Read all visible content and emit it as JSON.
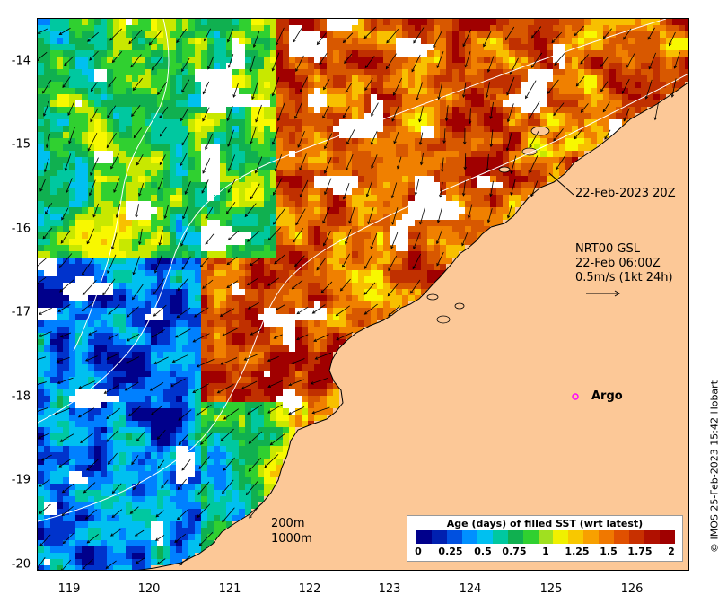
{
  "map": {
    "y_ticks": [
      "-14",
      "-15",
      "-16",
      "-17",
      "-18",
      "-19",
      "-20"
    ],
    "x_ticks": [
      "119",
      "120",
      "121",
      "122",
      "123",
      "124",
      "125",
      "126"
    ],
    "lat_range": [
      -20.1,
      -13.5
    ],
    "lon_range": [
      118.55,
      126.7
    ],
    "colors": {
      "land": "#fcc897",
      "no_data": "#ffffff",
      "contour": "#ffffff",
      "vector": "#000000",
      "argo_marker": "#ff00ff"
    },
    "age_palette": [
      "#00008b",
      "#0033cc",
      "#0080ff",
      "#00c0f0",
      "#00c8a0",
      "#10b050",
      "#30d030",
      "#c8e800",
      "#f8f800",
      "#f8c000",
      "#f08000",
      "#d85800",
      "#c03000",
      "#a00000"
    ]
  },
  "annotations": {
    "timestamp": "22-Feb-2023 20Z",
    "current_source": "NRT00 GSL",
    "current_time": "22-Feb 06:00Z",
    "scale_label": "0.5m/s (1kt 24h)",
    "argo_label": "Argo",
    "contour_200": "200m",
    "contour_1000": "1000m",
    "credit": "© IMOS 25-Feb-2023 15:42 Hobart"
  },
  "colorbar": {
    "title": "Age (days) of filled SST (wrt latest)",
    "ticks": [
      "0",
      "0.25",
      "0.5",
      "0.75",
      "1",
      "1.25",
      "1.5",
      "1.75",
      "2"
    ],
    "colors": [
      "#00008b",
      "#0020b0",
      "#0050e0",
      "#0090ff",
      "#00c0f0",
      "#00c8a0",
      "#10b050",
      "#30d030",
      "#a0e020",
      "#f0f000",
      "#f8c800",
      "#f8a000",
      "#f07800",
      "#e05000",
      "#c83000",
      "#b01000",
      "#a00000"
    ]
  }
}
